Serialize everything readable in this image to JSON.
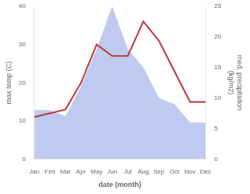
{
  "chart_data": {
    "type": "line",
    "xlabel": "date (month)",
    "ylabel": "max temp (C)",
    "y2label": "med. precipitation\n(kg/m2)",
    "categories": [
      "Jan",
      "Feb",
      "Mar",
      "Apr",
      "May",
      "Jun",
      "Jul",
      "Aug",
      "Sep",
      "Oct",
      "Nov",
      "Dec"
    ],
    "series": [
      {
        "type": "area",
        "axis": "y2",
        "color": "#b8c4ee",
        "values": [
          8,
          8,
          7,
          12,
          18,
          25,
          18,
          15,
          10,
          9,
          6,
          6
        ]
      },
      {
        "type": "line",
        "color": "#c0393b",
        "values": [
          11,
          12,
          13,
          20,
          30,
          27,
          27,
          36,
          31,
          23,
          15,
          15
        ]
      }
    ],
    "ylim": [
      0,
      40
    ],
    "yticks": [
      0,
      10,
      20,
      30,
      40
    ],
    "y2lim": [
      0,
      25
    ],
    "y2ticks": [
      0,
      5,
      10,
      15,
      20,
      25
    ],
    "grid": false
  }
}
